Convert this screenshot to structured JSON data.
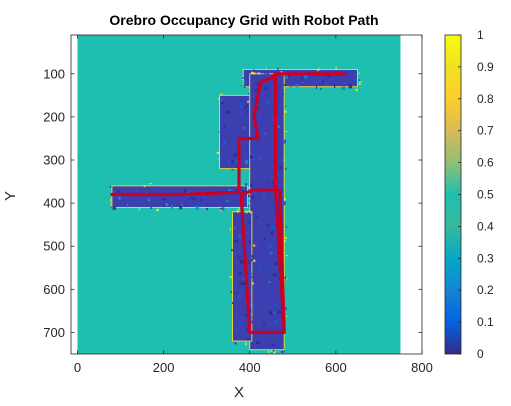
{
  "chart_data": {
    "type": "heatmap",
    "title": "Orebro Occupancy Grid with Robot Path",
    "xlabel": "X",
    "ylabel": "Y",
    "xlim": [
      -15,
      800
    ],
    "ylim": [
      750,
      10
    ],
    "y_axis_reversed": true,
    "xticks": [
      0,
      200,
      400,
      600,
      800
    ],
    "yticks": [
      100,
      200,
      300,
      400,
      500,
      600,
      700
    ],
    "grid": false,
    "colormap": "parula",
    "map_extent": {
      "x": [
        0,
        750
      ],
      "y": [
        10,
        750
      ]
    },
    "background_value": 0.5,
    "background_color": "#1ebfb0",
    "colorbar": {
      "range": [
        0,
        1
      ],
      "ticks": [
        "0",
        "0.1",
        "0.2",
        "0.3",
        "0.4",
        "0.5",
        "0.6",
        "0.7",
        "0.8",
        "0.9",
        "1"
      ]
    },
    "explored_regions": [
      {
        "name": "upper-corridor",
        "x": [
          385,
          650
        ],
        "y": [
          90,
          130
        ]
      },
      {
        "name": "upper-left-room",
        "x": [
          330,
          410
        ],
        "y": [
          150,
          320
        ]
      },
      {
        "name": "main-vertical-corridor",
        "x": [
          400,
          480
        ],
        "y": [
          100,
          740
        ]
      },
      {
        "name": "left-horizontal-corridor",
        "x": [
          80,
          395
        ],
        "y": [
          360,
          410
        ]
      },
      {
        "name": "lower-left-rooms",
        "x": [
          360,
          405
        ],
        "y": [
          420,
          720
        ]
      }
    ],
    "robot_path": {
      "color": "#cc0022",
      "points": [
        [
          80,
          380
        ],
        [
          240,
          380
        ],
        [
          375,
          375
        ],
        [
          375,
          250
        ],
        [
          420,
          250
        ],
        [
          410,
          200
        ],
        [
          425,
          120
        ],
        [
          450,
          110
        ],
        [
          460,
          100
        ],
        [
          620,
          100
        ],
        [
          460,
          100
        ],
        [
          460,
          370
        ],
        [
          480,
          700
        ],
        [
          400,
          700
        ],
        [
          380,
          380
        ],
        [
          410,
          370
        ],
        [
          470,
          370
        ],
        [
          480,
          700
        ],
        [
          400,
          700
        ],
        [
          380,
          380
        ]
      ]
    }
  }
}
